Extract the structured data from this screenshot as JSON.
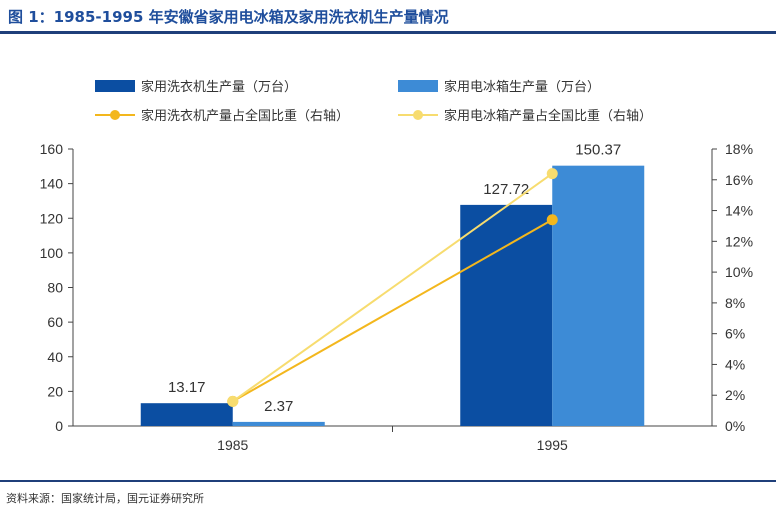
{
  "title": "图 1：1985-1995 年安徽省家用电冰箱及家用洗衣机生产量情况",
  "source": "资料来源：国家统计局，国元证券研究所",
  "colors": {
    "washer_bar": "#0b4ea2",
    "fridge_bar": "#3d8bd6",
    "washer_line": "#f3b71d",
    "fridge_line": "#f7dc6f",
    "title": "#1f4e9c"
  },
  "chart_data": {
    "type": "bar",
    "categories": [
      "1985",
      "1995"
    ],
    "series": [
      {
        "name": "家用洗衣机生产量（万台）",
        "kind": "bar",
        "axis": "left",
        "values": [
          13.17,
          127.72
        ],
        "data_labels": [
          "13.17",
          "127.72"
        ]
      },
      {
        "name": "家用电冰箱生产量（万台）",
        "kind": "bar",
        "axis": "left",
        "values": [
          2.37,
          150.37
        ],
        "data_labels": [
          "2.37",
          "150.37"
        ]
      },
      {
        "name": "家用洗衣机产量占全国比重（右轴）",
        "kind": "line",
        "axis": "right",
        "values": [
          1.6,
          13.4
        ]
      },
      {
        "name": "家用电冰箱产量占全国比重（右轴）",
        "kind": "line",
        "axis": "right",
        "values": [
          1.6,
          16.4
        ]
      }
    ],
    "ylim": [
      0,
      160
    ],
    "y_ticks": [
      "0",
      "20",
      "40",
      "60",
      "80",
      "100",
      "120",
      "140",
      "160"
    ],
    "y2lim": [
      0,
      18
    ],
    "y2_ticks": [
      "0%",
      "2%",
      "4%",
      "6%",
      "8%",
      "10%",
      "12%",
      "14%",
      "16%",
      "18%"
    ],
    "legend_position": "top",
    "grid": false
  }
}
